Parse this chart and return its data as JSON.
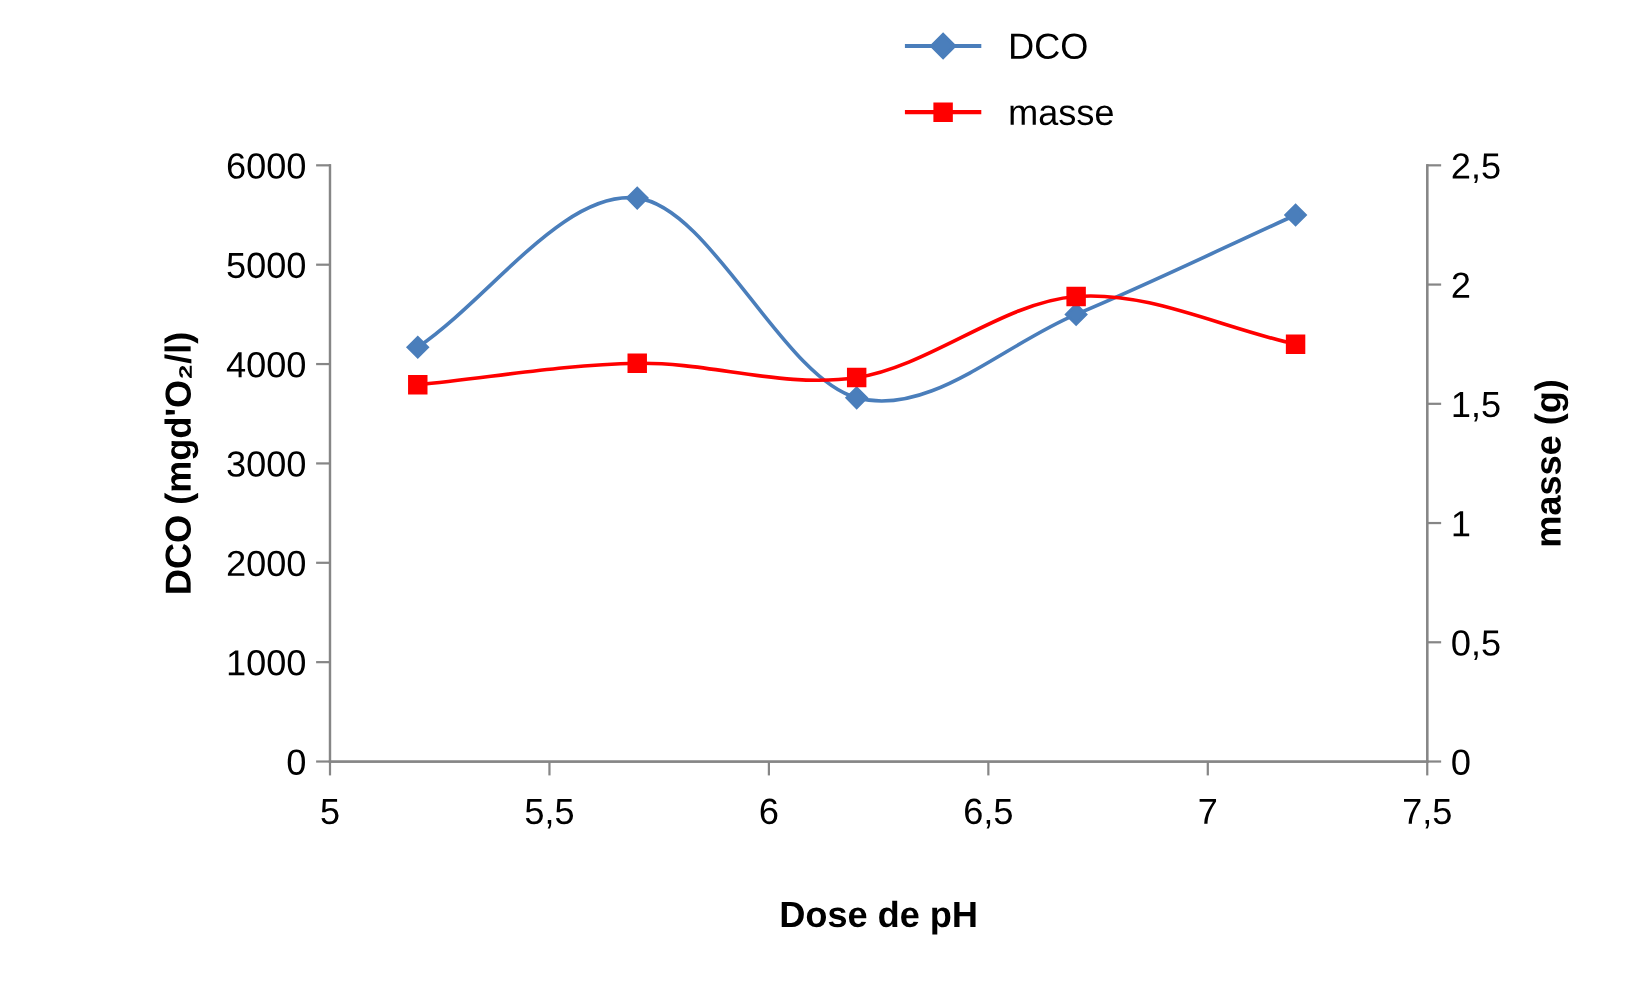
{
  "chart_data": {
    "type": "line",
    "xlabel": "Dose de pH",
    "ylabel": "DCO (mgd'O₂/l)",
    "y2label": "masse (g)",
    "x": [
      5.2,
      5.7,
      6.2,
      6.7,
      7.2
    ],
    "series": [
      {
        "name": "DCO",
        "color": "#4a7ebb",
        "marker": "diamond",
        "values": [
          4170,
          5670,
          3660,
          4500,
          5500
        ]
      },
      {
        "name": "masse",
        "color": "#ff0000",
        "marker": "square",
        "axis": "y2",
        "values": [
          1.58,
          1.67,
          1.61,
          1.95,
          1.75
        ]
      }
    ],
    "xlim": [
      5,
      7.5
    ],
    "xticks": [
      5,
      {
        "value": 5.5,
        "label": "5,5"
      },
      6,
      {
        "value": 6.5,
        "label": "6,5"
      },
      7,
      {
        "value": 7.5,
        "label": "7,5"
      }
    ],
    "ylim": [
      0,
      6000
    ],
    "yticks": [
      0,
      1000,
      2000,
      3000,
      4000,
      5000,
      6000
    ],
    "y2lim": [
      0,
      2.5
    ],
    "y2ticks": [
      0,
      {
        "value": 0.5,
        "label": "0,5"
      },
      1,
      {
        "value": 1.5,
        "label": "1,5"
      },
      2,
      {
        "value": 2.5,
        "label": "2,5"
      }
    ],
    "grid": false,
    "legend": "top",
    "line_style": "solid"
  }
}
